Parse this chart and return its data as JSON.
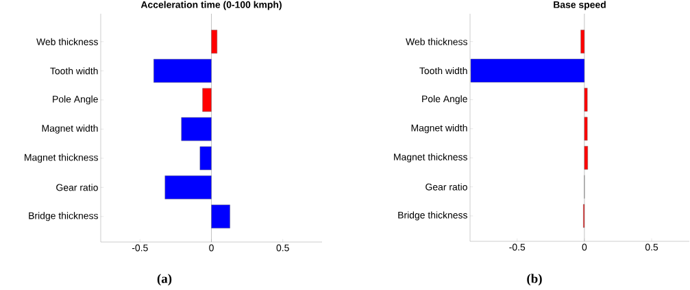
{
  "chart_data": [
    {
      "type": "bar",
      "orientation": "horizontal",
      "title": "Acceleration time (0-100 kmph)",
      "categories": [
        "Web thickness",
        "Tooth width",
        "Pole Angle",
        "Magnet width",
        "Magnet thickness",
        "Gear ratio",
        "Bridge thickness"
      ],
      "values": [
        0.04,
        -0.404,
        -0.062,
        -0.21,
        -0.08,
        -0.325,
        0.13
      ],
      "colors": [
        "#ff0000",
        "#0000ff",
        "#ff0000",
        "#0000ff",
        "#0000ff",
        "#0000ff",
        "#0000ff"
      ],
      "xlim": [
        -0.775,
        0.775
      ],
      "xticks": [
        -0.5,
        0,
        0.5
      ],
      "ref_lines": [
        {
          "axis": "x",
          "value": 0,
          "color": "#666666"
        }
      ],
      "annotations": [
        "**(a)**"
      ]
    },
    {
      "type": "bar",
      "orientation": "horizontal",
      "title": "Base speed",
      "categories": [
        "Web thickness",
        "Tooth width",
        "Pole Angle",
        "Magnet width",
        "Magnet thickness",
        "Gear ratio",
        "Bridge thickness"
      ],
      "values": [
        -0.027,
        -0.845,
        0.022,
        0.022,
        0.025,
        0,
        -0.008
      ],
      "colors": [
        "#ff0000",
        "#0000ff",
        "#ff0000",
        "#ff0000",
        "#ff0000",
        "#ff0000",
        "#ff0000"
      ],
      "xlim": [
        -0.85,
        0.78
      ],
      "xticks": [
        -0.5,
        0,
        0.5
      ],
      "ref_lines": [
        {
          "axis": "x",
          "value": 0,
          "color": "#666666"
        }
      ],
      "annotations": [
        "**(b)**"
      ]
    }
  ]
}
